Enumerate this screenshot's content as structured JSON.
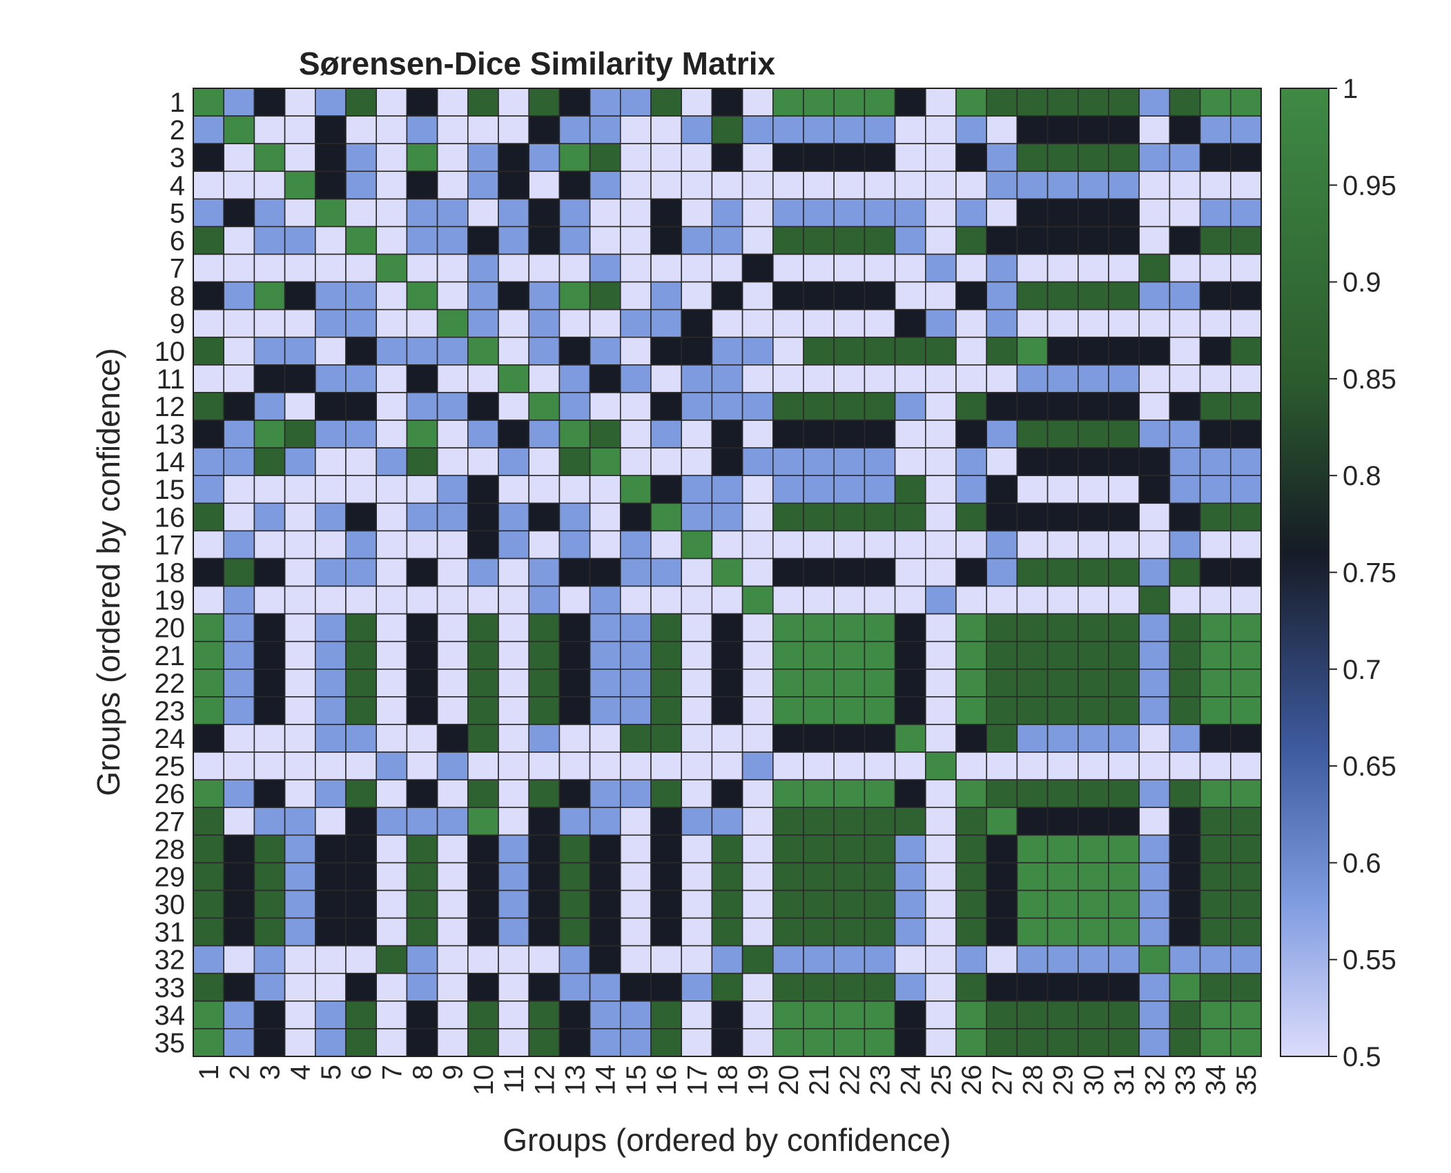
{
  "chart_data": {
    "type": "heatmap",
    "title": "Sørensen-Dice Similarity Matrix",
    "xlabel": "Groups (ordered by confidence)",
    "ylabel": "Groups (ordered by confidence)",
    "labels": [
      "1",
      "2",
      "3",
      "4",
      "5",
      "6",
      "7",
      "8",
      "9",
      "10",
      "11",
      "12",
      "13",
      "14",
      "15",
      "16",
      "17",
      "18",
      "19",
      "20",
      "21",
      "22",
      "23",
      "24",
      "25",
      "26",
      "27",
      "28",
      "29",
      "30",
      "31",
      "32",
      "33",
      "34",
      "35"
    ],
    "colorbar": {
      "range": [
        0.5,
        1
      ],
      "ticks": [
        "0.5",
        "0.55",
        "0.6",
        "0.65",
        "0.7",
        "0.75",
        "0.8",
        "0.85",
        "0.9",
        "0.95",
        "1"
      ],
      "colors": {
        "low": "#dcdcfb",
        "mid_low": "#7f9be0",
        "mid": "#3e5a9e",
        "dark": "#161b26",
        "mid_high": "#2c5c2e",
        "high": "#3f8a45"
      }
    },
    "matrix_codes_legend": "A=1.0 B=0.87 C=0.76 D=0.58 E=0.5",
    "matrix": [
      "ADCEDBECEBEBCDDBECEAAAACEABBBBBDBAA",
      "DAEECEEDEEECDDEEDBDDDDDEEDECCCCECDD",
      "CEAECDEAEDCDABEEECECCCCEECDBBBBDDCC",
      "EEEACDECEDCECDEEEEEEEEEEEEDDDDDEEEE",
      "DCDEAEEDDEDCDEECEDEDDDDDEDECCCCEEDD",
      "BEDDEAEDDCDCDEECDDEBBBBDEBCCCCCECBB",
      "EEEEEEAEEDEEEDEEEECEEEEEDEDEEEEBEEE",
      "CDACDDEAEDCDABEDECECCCCEECDBBBBDDCC",
      "EEEEDDEEADEDEEDDCEEEEEECDEDEEEEEEEE",
      "BEDDECDDDAEDCDECCDDEBBBBBEBACCCCECB",
      "EECCDDECEEAEDCDEDDEEEEEEEEEDDDDEEEE",
      "BCDECCEDDCEADEECDDDBBBBDEBCCCCCECBB",
      "CDABDDEAEDCDABEDECECCCCEECDBBBBDDCC",
      "DDBDEEDBEEDEBAEEECDDDDDEEDECCCCCDDD",
      "DEEEEEEEDCEEEEACDDEDDDDBEDCEEEECDDD",
      "BEDEDCEDDCDCDECADDEBBBBBEBCCCCCECBB",
      "EDEEEDEEECDEDEDEAEEEEEEEEEDEEEEEDEE",
      "CBCEDDECEDEDCCDDEAECCCCEECDBBBBDBCC",
      "EDEEEEEEEEEDEDEEEEAEEEEEDEEEEEEBEEE",
      "ADCEDBECEBEBCDDBECEAAAACEABBBBBDBAA",
      "ADCEDBECEBEBCDDBECEAAAACEABBBBBDBAA",
      "ADCEDBECEBEBCDDBECEAAAACEABBBBBDBAA",
      "ADCEDBECEBEBCDDBECEAAAACEABBBBBDBAA",
      "CEEEDDEECBEDEEBBEEECCCCAECBDDDDEDCC",
      "EEEEEEDEDEEEEEEEEEDEEEEEAEEEEEEEEEE",
      "ADCEDBECEBEBCDDBECEAAAACEABBBBBDBAA",
      "BEDDECDDDAECDDECDDEBBBBBEBACCCCECBB",
      "BCBDCCEBECDCBCECEBEBBBBDEBCAAAADCBB",
      "BCBDCCEBECDCBCECEBEBBBBDEBCAAAADCBB",
      "BCBDCCEBECDCBCECEBEBBBBDEBCAAAADCBB",
      "BCBDCCEBECDCBCECEBEBBBBDEBCAAAADCBB",
      "DEDEEEBDEEEEDCEEEDBDDDDEEDEDDDDADDD",
      "BCDEECEDECECDDCCDBEBBBBDEBCCCCCDABB",
      "ADCEDBECEBEBCDDBECEAAAACEABBBBBDBAA",
      "ADCEDBECEBEBCDDBECEAAAACEABBBBBDBAA"
    ]
  }
}
